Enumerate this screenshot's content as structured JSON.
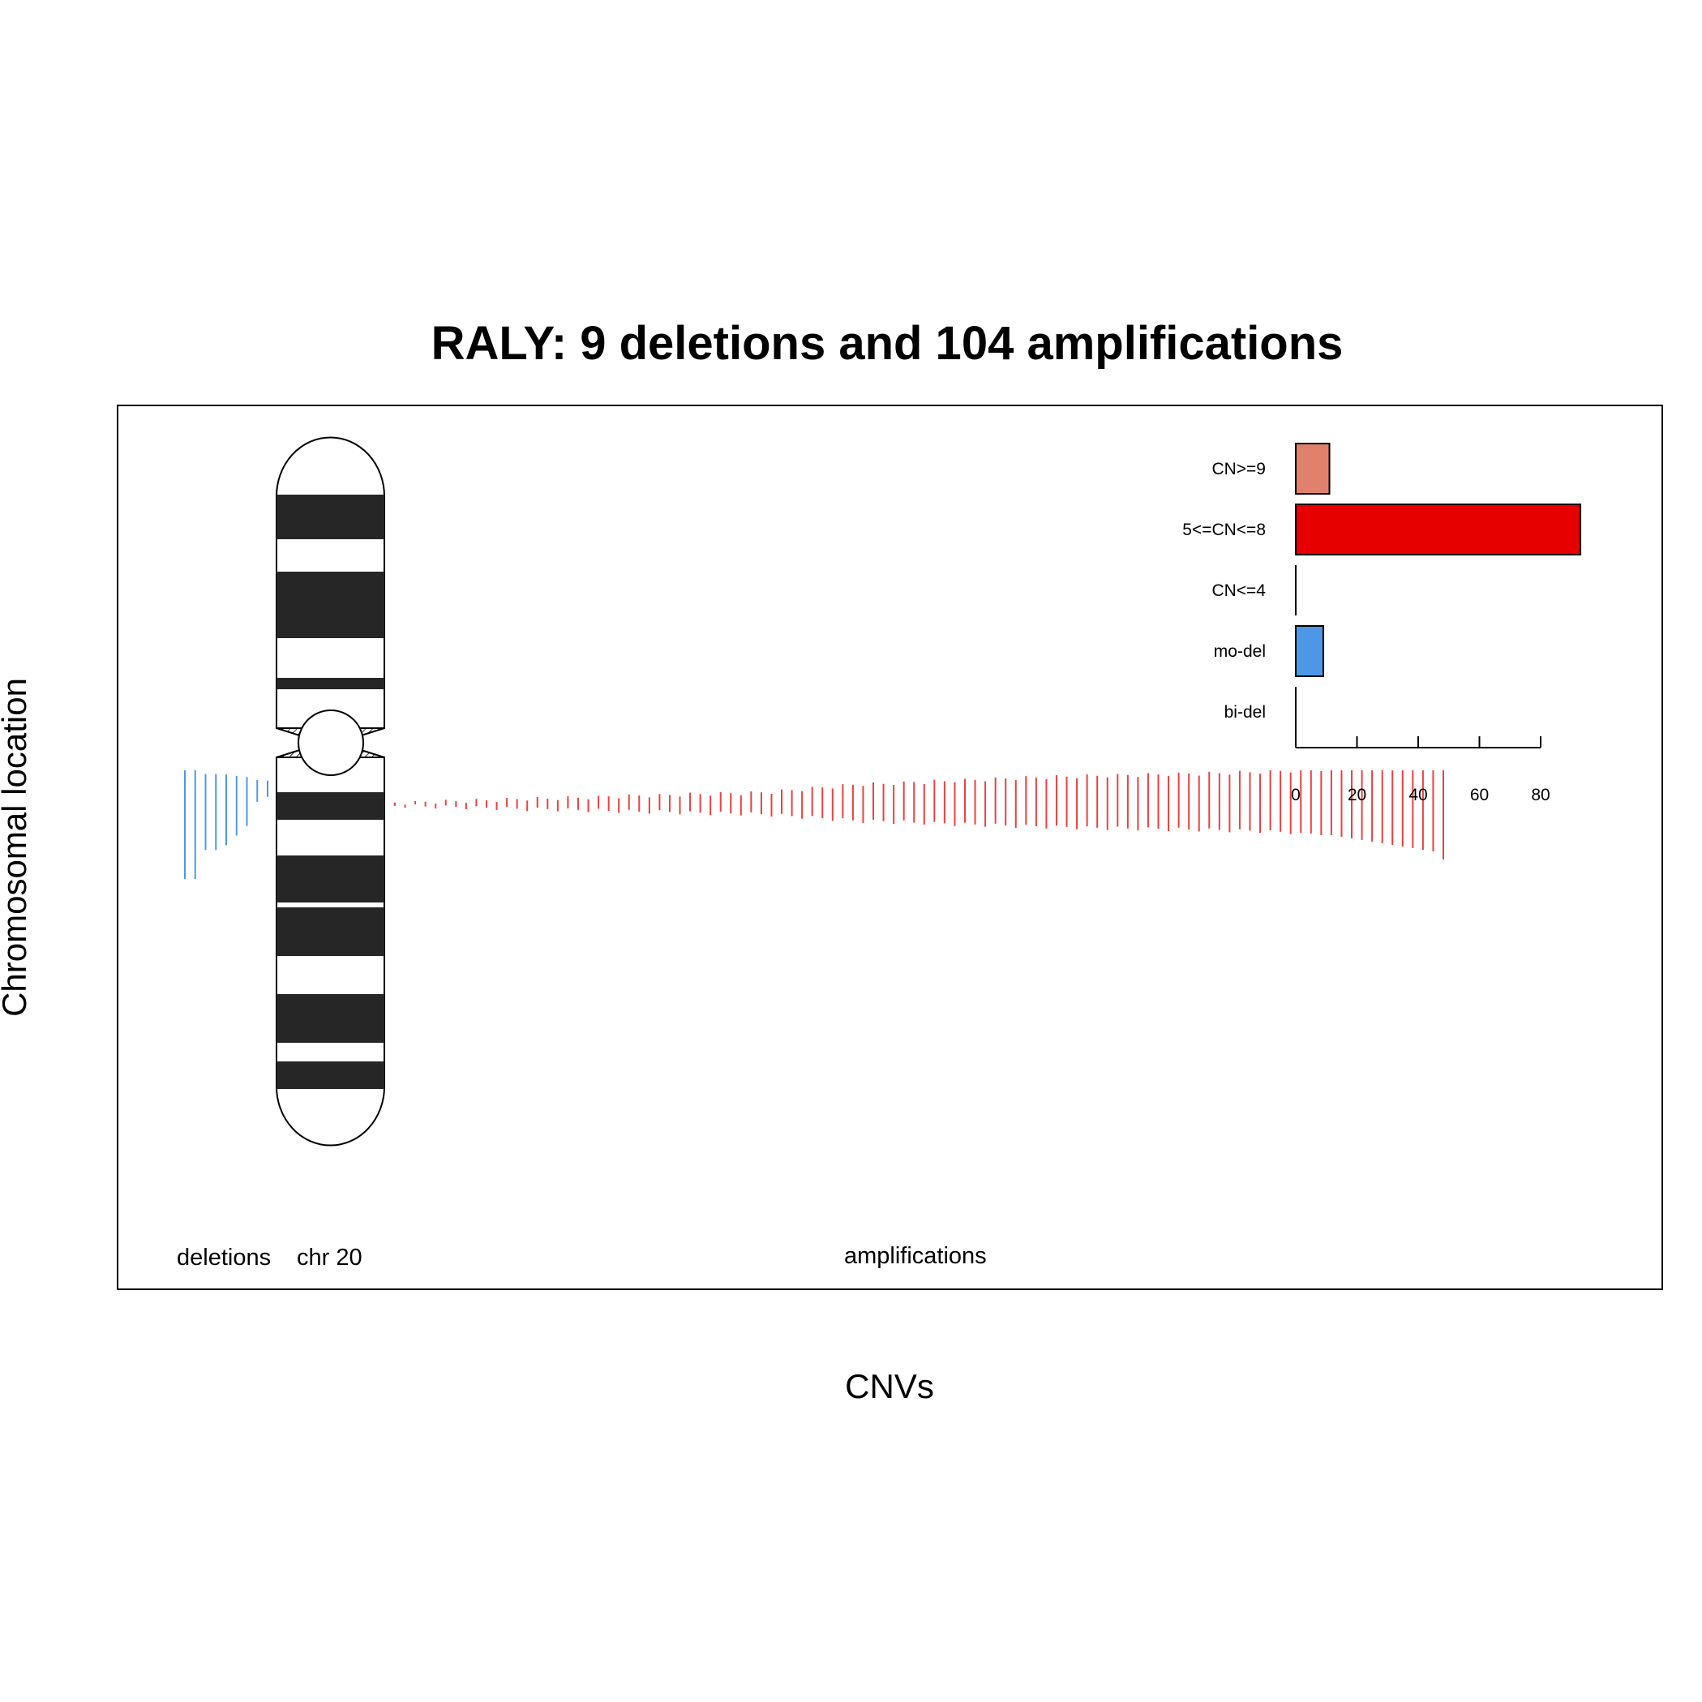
{
  "chart_data": {
    "type": "bar",
    "title": "RALY: 9 deletions and 104 amplifications",
    "xlabel": "CNVs",
    "ylabel": "Chromosomal location",
    "chromosome_label": "chr 20",
    "deletions_label": "deletions",
    "amplifications_label": "amplifications",
    "bar_panel": {
      "categories": [
        "CN>=9",
        "5<=CN<=8",
        "CN<=4",
        "mo-del",
        "bi-del"
      ],
      "values": [
        11,
        93,
        0,
        9,
        0
      ],
      "colors": [
        "#e0826b",
        "#e60000",
        "#e60000",
        "#4c98e6",
        "#4c98e6"
      ],
      "xlim": [
        0,
        80
      ],
      "ticks": [
        0,
        20,
        40,
        60,
        80
      ]
    },
    "cnv_segments": {
      "deletion_color": "#4c98e6",
      "amplification_color": "#e60000",
      "deletion_lengths": [
        100,
        100,
        70,
        70,
        65,
        55,
        45,
        20,
        15
      ],
      "amplification_lengths": [
        4,
        4,
        4,
        6,
        6,
        7,
        7,
        8,
        9,
        9,
        10,
        11,
        12,
        13,
        13,
        13,
        14,
        15,
        15,
        16,
        16,
        18,
        18,
        19,
        20,
        20,
        20,
        21,
        22,
        23,
        23,
        24,
        24,
        25,
        25,
        26,
        27,
        28,
        30,
        32,
        34,
        36,
        38,
        40,
        42,
        44,
        46,
        46,
        46,
        48,
        48,
        50,
        50,
        52,
        52,
        54,
        54,
        55,
        56,
        57,
        58,
        59,
        60,
        60,
        61,
        62,
        62,
        63,
        64,
        64,
        65,
        65,
        66,
        66,
        67,
        67,
        68,
        68,
        69,
        69,
        70,
        70,
        71,
        72,
        72,
        73,
        74,
        75,
        76,
        77,
        78,
        79,
        80,
        82,
        84,
        86,
        88,
        90,
        92,
        94,
        96,
        98,
        100,
        110
      ]
    }
  }
}
